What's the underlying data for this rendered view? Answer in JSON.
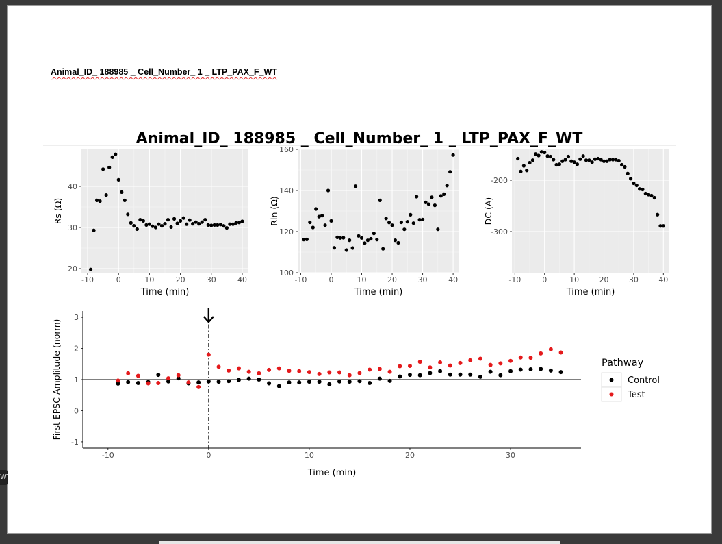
{
  "document": {
    "heading": "Animal_ID_ 188985 _ Cell_Number_ 1 _ LTP_PAX_F_WT",
    "side_tab": "WT"
  },
  "chart_data": [
    {
      "type": "scatter",
      "title": "Animal_ID_ 188985 _ Cell_Number_ 1 _ LTP_PAX_F_WT",
      "xlabel": "Time (min)",
      "ylabel": "Rs (Ω)",
      "xlim": [
        -12,
        42
      ],
      "ylim": [
        19,
        49
      ],
      "xticks": [
        -10,
        0,
        10,
        20,
        30,
        40
      ],
      "xtick_labels": [
        "-10",
        "0",
        "10",
        "20",
        "30",
        "40"
      ],
      "yticks": [
        20,
        30,
        40
      ],
      "ytick_labels": [
        "20",
        "30",
        "40"
      ],
      "grid": true,
      "background": "#ebebeb",
      "x": [
        -9,
        -8,
        -7,
        -6,
        -5,
        -4,
        -3,
        -2,
        -1,
        0,
        1,
        2,
        3,
        4,
        5,
        6,
        7,
        8,
        9,
        10,
        11,
        12,
        13,
        14,
        15,
        16,
        17,
        18,
        19,
        20,
        21,
        22,
        23,
        24,
        25,
        26,
        27,
        28,
        29,
        30,
        31,
        32,
        33,
        34,
        35,
        36,
        37,
        38,
        39,
        40
      ],
      "y": [
        19.8,
        29.3,
        36.6,
        36.4,
        44.2,
        37.9,
        44.6,
        47.1,
        47.8,
        41.6,
        38.6,
        36.6,
        33.2,
        31.1,
        30.4,
        29.6,
        31.9,
        31.6,
        30.6,
        30.8,
        30.3,
        30.0,
        30.8,
        30.4,
        30.9,
        31.9,
        30.1,
        32.1,
        31.0,
        31.6,
        32.3,
        30.8,
        31.8,
        30.9,
        31.3,
        30.9,
        31.3,
        31.9,
        30.6,
        30.5,
        30.6,
        30.6,
        30.7,
        30.4,
        29.9,
        30.8,
        30.8,
        31.1,
        31.2,
        31.5
      ]
    },
    {
      "type": "scatter",
      "xlabel": "Time (min)",
      "ylabel": "Rin (Ω)",
      "xlim": [
        -11,
        42
      ],
      "ylim": [
        100,
        160
      ],
      "xticks": [
        -10,
        0,
        10,
        20,
        30,
        40
      ],
      "xtick_labels": [
        "-10",
        "0",
        "10",
        "20",
        "30",
        "40"
      ],
      "yticks": [
        100,
        120,
        140,
        160
      ],
      "ytick_labels": [
        "100",
        "120",
        "140",
        "160"
      ],
      "grid": true,
      "background": "#ebebeb",
      "x": [
        -9,
        -8,
        -7,
        -6,
        -5,
        -4,
        -3,
        -2,
        -1,
        0,
        1,
        2,
        3,
        4,
        5,
        6,
        7,
        8,
        9,
        10,
        11,
        12,
        13,
        14,
        15,
        16,
        17,
        18,
        19,
        20,
        21,
        22,
        23,
        24,
        25,
        26,
        27,
        28,
        29,
        30,
        31,
        32,
        33,
        34,
        35,
        36,
        37,
        38,
        39,
        40
      ],
      "y": [
        116.1,
        116.2,
        124.5,
        122.0,
        131.0,
        127.3,
        127.8,
        123.1,
        140.0,
        125.2,
        112.1,
        117.2,
        116.9,
        117.0,
        111.0,
        115.8,
        112.0,
        142.1,
        117.9,
        116.9,
        114.4,
        115.8,
        116.5,
        119.1,
        116.1,
        135.2,
        111.6,
        126.4,
        124.4,
        123.1,
        115.8,
        114.5,
        124.5,
        121.1,
        124.8,
        128.2,
        124.1,
        137.0,
        125.8,
        125.9,
        134.2,
        133.3,
        136.7,
        132.8,
        121.1,
        137.4,
        138.2,
        142.4,
        149.1,
        157.3
      ]
    },
    {
      "type": "scatter",
      "xlabel": "Time (min)",
      "ylabel": "DC (A)",
      "xlim": [
        -11,
        42
      ],
      "ylim": [
        -380,
        -140
      ],
      "xticks": [
        -10,
        0,
        10,
        20,
        30,
        40
      ],
      "xtick_labels": [
        "-10",
        "0",
        "10",
        "20",
        "30",
        "40"
      ],
      "yticks": [
        -300,
        -200
      ],
      "ytick_labels": [
        "-300",
        "-200"
      ],
      "grid": true,
      "background": "#ebebeb",
      "x": [
        -9,
        -8,
        -7,
        -6,
        -5,
        -4,
        -3,
        -2,
        -1,
        0,
        1,
        2,
        3,
        4,
        5,
        6,
        7,
        8,
        9,
        10,
        11,
        12,
        13,
        14,
        15,
        16,
        17,
        18,
        19,
        20,
        21,
        22,
        23,
        24,
        25,
        26,
        27,
        28,
        29,
        30,
        31,
        32,
        33,
        34,
        35,
        36,
        37,
        38,
        39,
        40
      ],
      "y": [
        -158,
        -183,
        -172,
        -181,
        -166,
        -161,
        -149,
        -152,
        -145,
        -146,
        -153,
        -154,
        -160,
        -170,
        -169,
        -163,
        -160,
        -154,
        -163,
        -165,
        -169,
        -159,
        -153,
        -161,
        -161,
        -165,
        -159,
        -158,
        -160,
        -163,
        -163,
        -160,
        -160,
        -160,
        -162,
        -170,
        -174,
        -187,
        -197,
        -206,
        -210,
        -217,
        -218,
        -226,
        -228,
        -230,
        -234,
        -267,
        -289,
        -289
      ]
    },
    {
      "type": "scatter",
      "xlabel": "Time (min)",
      "ylabel": "First EPSC Amplitude (norm)",
      "xlim": [
        -12.5,
        37
      ],
      "ylim": [
        -1.2,
        3.2
      ],
      "xticks": [
        -10,
        0,
        10,
        20,
        30
      ],
      "xtick_labels": [
        "-10",
        "0",
        "10",
        "20",
        "30"
      ],
      "yticks": [
        -1,
        0,
        1,
        2,
        3
      ],
      "ytick_labels": [
        "-1",
        "0",
        "1",
        "2",
        "3"
      ],
      "grid": false,
      "background": "#ffffff",
      "hline": 1,
      "vline": 0,
      "arrow_at_x": 0,
      "legend": {
        "title": "Pathway",
        "position": "right"
      },
      "x": [
        -9,
        -8,
        -7,
        -6,
        -5,
        -4,
        -3,
        -2,
        -1,
        0,
        1,
        2,
        3,
        4,
        5,
        6,
        7,
        8,
        9,
        10,
        11,
        12,
        13,
        14,
        15,
        16,
        17,
        18,
        19,
        20,
        21,
        22,
        23,
        24,
        25,
        26,
        27,
        28,
        29,
        30,
        31,
        32,
        33,
        34,
        35
      ],
      "series": [
        {
          "name": "Control",
          "color": "#000000",
          "values": [
            0.87,
            0.92,
            0.89,
            0.92,
            1.15,
            0.94,
            1.04,
            0.88,
            0.91,
            0.94,
            0.93,
            0.95,
            0.99,
            1.03,
            1.0,
            0.88,
            0.79,
            0.91,
            0.91,
            0.93,
            0.93,
            0.85,
            0.94,
            0.93,
            0.95,
            0.89,
            1.03,
            0.96,
            1.1,
            1.15,
            1.14,
            1.21,
            1.27,
            1.16,
            1.16,
            1.16,
            1.09,
            1.25,
            1.14,
            1.27,
            1.32,
            1.33,
            1.34,
            1.29,
            1.24
          ]
        },
        {
          "name": "Test",
          "color": "#e41a1c",
          "values": [
            0.97,
            1.2,
            1.12,
            0.88,
            0.89,
            1.04,
            1.14,
            0.91,
            0.76,
            1.8,
            1.41,
            1.29,
            1.36,
            1.25,
            1.2,
            1.31,
            1.36,
            1.28,
            1.27,
            1.24,
            1.18,
            1.23,
            1.23,
            1.14,
            1.21,
            1.32,
            1.34,
            1.25,
            1.43,
            1.44,
            1.57,
            1.39,
            1.55,
            1.45,
            1.53,
            1.62,
            1.67,
            1.47,
            1.52,
            1.6,
            1.71,
            1.7,
            1.84,
            1.97,
            1.87
          ]
        }
      ]
    }
  ]
}
